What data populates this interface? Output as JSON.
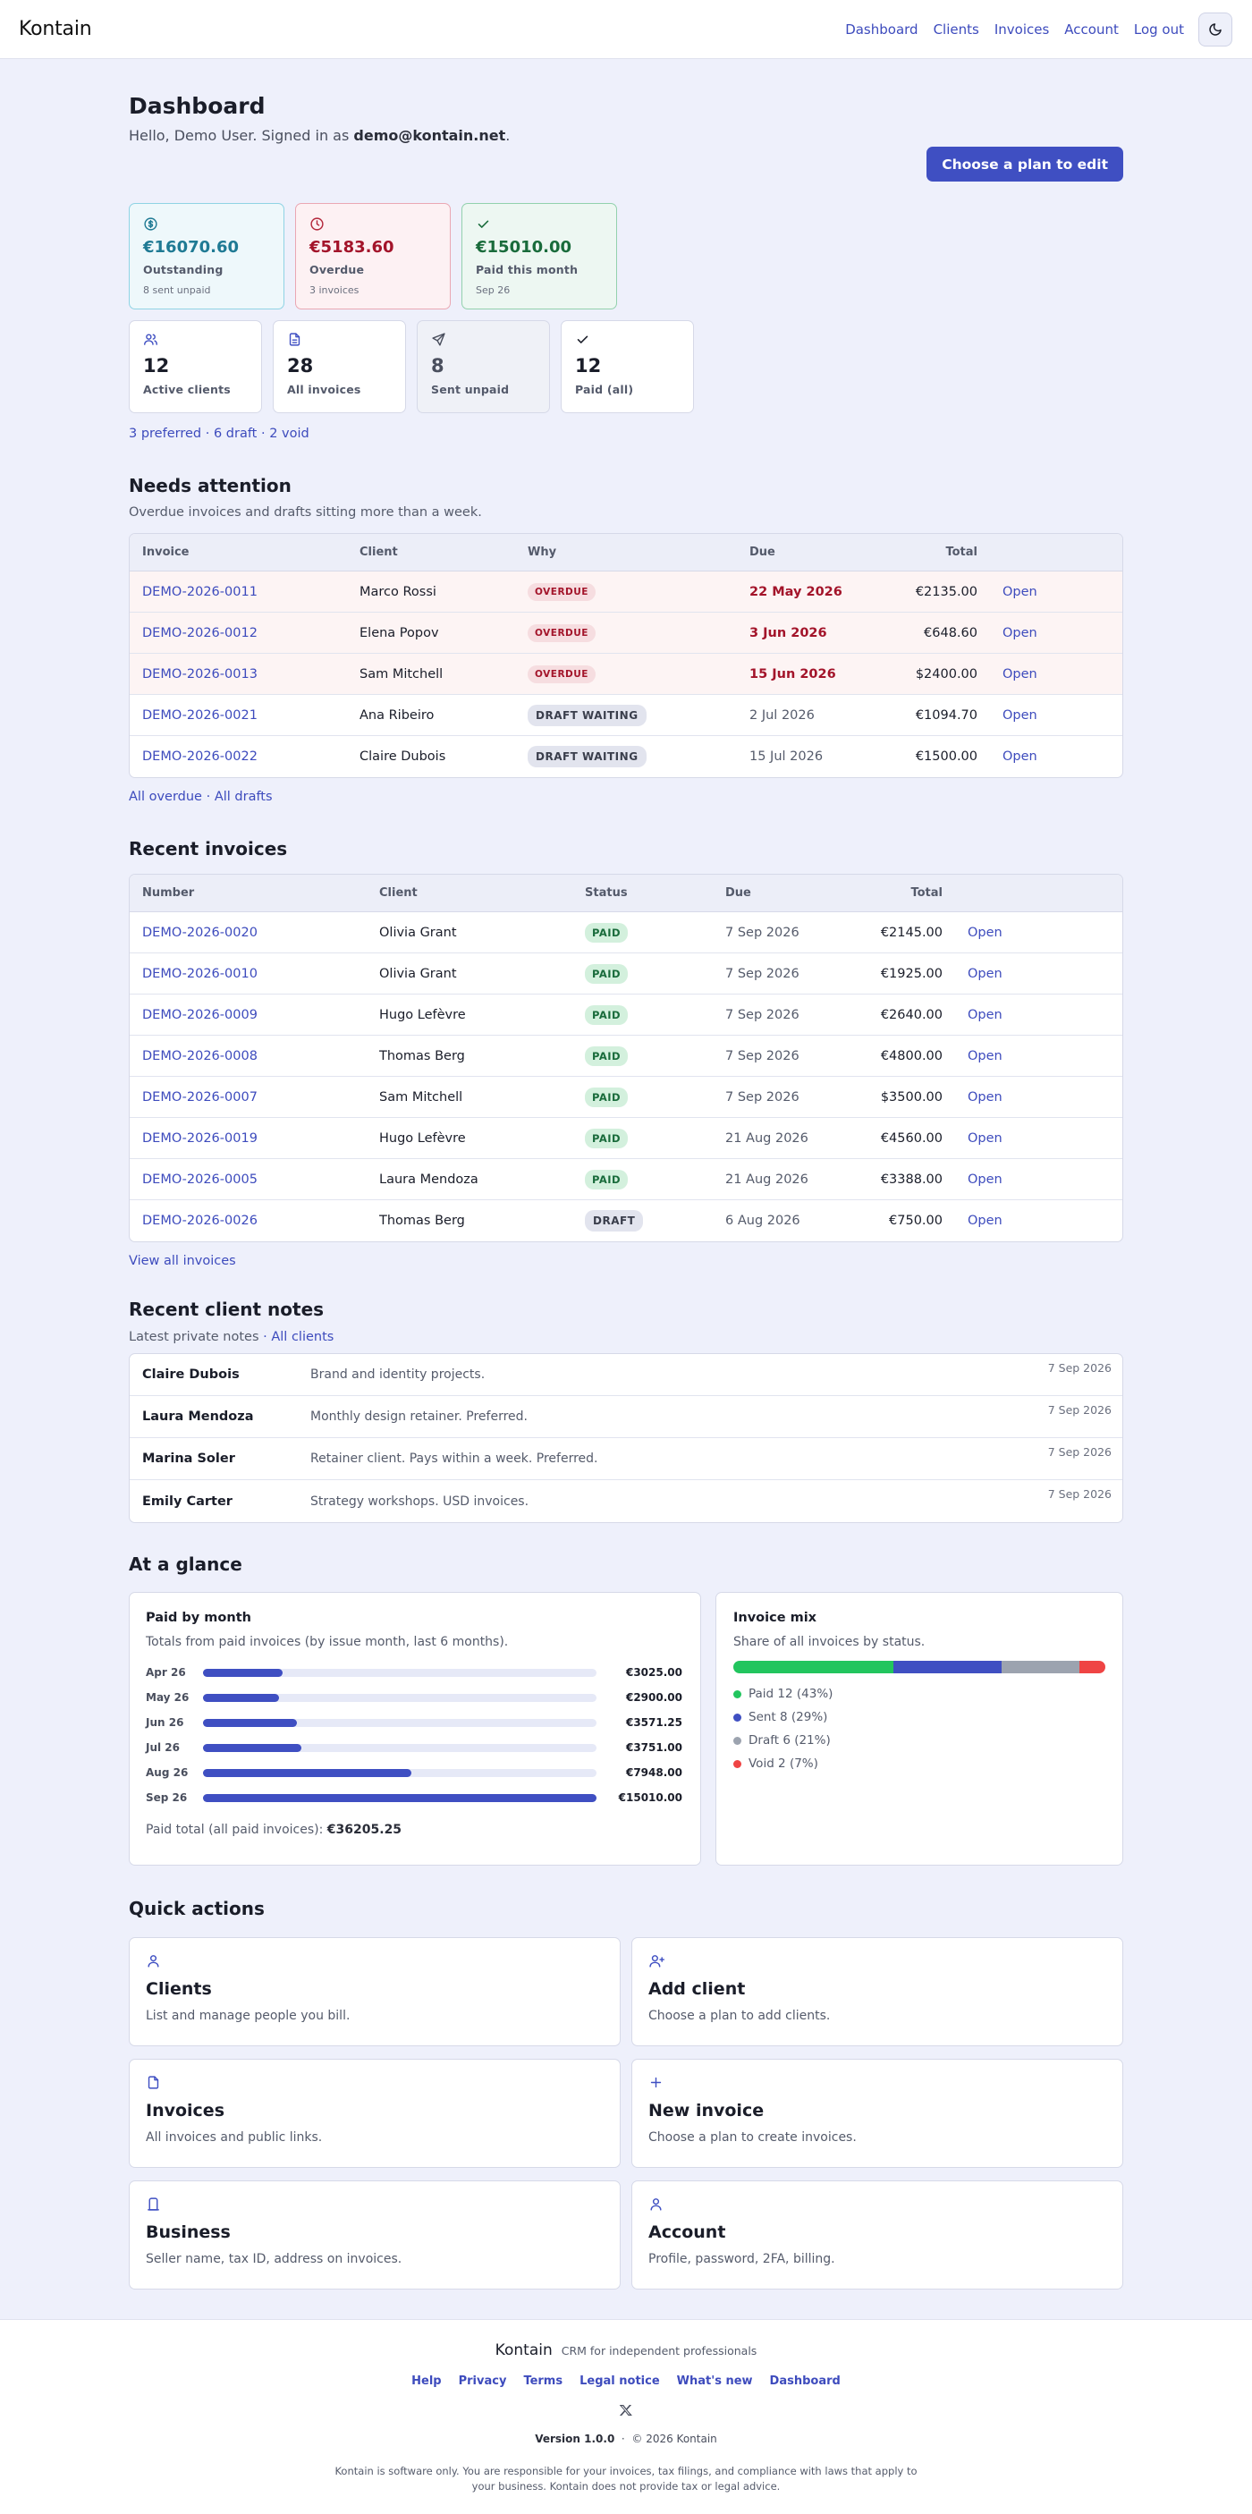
{
  "header": {
    "brand": "Kontain",
    "nav": [
      "Dashboard",
      "Clients",
      "Invoices",
      "Account",
      "Log out"
    ],
    "theme_icon": "moon-icon"
  },
  "dashboard": {
    "title": "Dashboard",
    "greeting_prefix": "Hello, Demo User. Signed in as",
    "email": "demo@kontain.net",
    "greeting_suffix": ".",
    "plan_button": "Choose a plan to edit"
  },
  "stats": {
    "outstanding": {
      "value": "€16070.60",
      "label": "Outstanding",
      "sub": "8 sent unpaid",
      "icon": "currency-circle-icon"
    },
    "overdue": {
      "value": "€5183.60",
      "label": "Overdue",
      "sub": "3 invoices",
      "icon": "clock-icon"
    },
    "paid_month": {
      "value": "€15010.00",
      "label": "Paid this month",
      "sub": "Sep 26",
      "icon": "check-icon"
    },
    "active_clients": {
      "value": "12",
      "label": "Active clients",
      "icon": "users-icon"
    },
    "all_invoices": {
      "value": "28",
      "label": "All invoices",
      "icon": "document-icon"
    },
    "sent_unpaid": {
      "value": "8",
      "label": "Sent unpaid",
      "icon": "send-icon"
    },
    "paid_all": {
      "value": "12",
      "label": "Paid (all)",
      "icon": "check-icon"
    }
  },
  "meta_links": {
    "preferred": "3 preferred",
    "sep1": " · ",
    "draft": "6 draft",
    "sep2": " · ",
    "void": "2 void"
  },
  "attention": {
    "title": "Needs attention",
    "subtitle": "Overdue invoices and drafts sitting more than a week.",
    "columns": [
      "Invoice",
      "Client",
      "Why",
      "Due",
      "Total",
      ""
    ],
    "rows": [
      {
        "invoice": "DEMO-2026-0011",
        "client": "Marco Rossi",
        "why": "OVERDUE",
        "due": "22 May 2026",
        "total": "€2135.00",
        "action": "Open"
      },
      {
        "invoice": "DEMO-2026-0012",
        "client": "Elena Popov",
        "why": "OVERDUE",
        "due": "3 Jun 2026",
        "total": "€648.60",
        "action": "Open"
      },
      {
        "invoice": "DEMO-2026-0013",
        "client": "Sam Mitchell",
        "why": "OVERDUE",
        "due": "15 Jun 2026",
        "total": "$2400.00",
        "action": "Open"
      },
      {
        "invoice": "DEMO-2026-0021",
        "client": "Ana Ribeiro",
        "why": "DRAFT WAITING",
        "due": "2 Jul 2026",
        "total": "€1094.70",
        "action": "Open"
      },
      {
        "invoice": "DEMO-2026-0022",
        "client": "Claire Dubois",
        "why": "DRAFT WAITING",
        "due": "15 Jul 2026",
        "total": "€1500.00",
        "action": "Open"
      }
    ],
    "link_overdue": "All overdue",
    "link_sep": " · ",
    "link_drafts": "All drafts"
  },
  "recent": {
    "title": "Recent invoices",
    "columns": [
      "Number",
      "Client",
      "Status",
      "Due",
      "Total",
      ""
    ],
    "rows": [
      {
        "number": "DEMO-2026-0020",
        "client": "Olivia Grant",
        "status": "PAID",
        "due": "7 Sep 2026",
        "total": "€2145.00",
        "action": "Open"
      },
      {
        "number": "DEMO-2026-0010",
        "client": "Olivia Grant",
        "status": "PAID",
        "due": "7 Sep 2026",
        "total": "€1925.00",
        "action": "Open"
      },
      {
        "number": "DEMO-2026-0009",
        "client": "Hugo Lefèvre",
        "status": "PAID",
        "due": "7 Sep 2026",
        "total": "€2640.00",
        "action": "Open"
      },
      {
        "number": "DEMO-2026-0008",
        "client": "Thomas Berg",
        "status": "PAID",
        "due": "7 Sep 2026",
        "total": "€4800.00",
        "action": "Open"
      },
      {
        "number": "DEMO-2026-0007",
        "client": "Sam Mitchell",
        "status": "PAID",
        "due": "7 Sep 2026",
        "total": "$3500.00",
        "action": "Open"
      },
      {
        "number": "DEMO-2026-0019",
        "client": "Hugo Lefèvre",
        "status": "PAID",
        "due": "21 Aug 2026",
        "total": "€4560.00",
        "action": "Open"
      },
      {
        "number": "DEMO-2026-0005",
        "client": "Laura Mendoza",
        "status": "PAID",
        "due": "21 Aug 2026",
        "total": "€3388.00",
        "action": "Open"
      },
      {
        "number": "DEMO-2026-0026",
        "client": "Thomas Berg",
        "status": "DRAFT",
        "due": "6 Aug 2026",
        "total": "€750.00",
        "action": "Open"
      }
    ],
    "view_all": "View all invoices"
  },
  "notes": {
    "title": "Recent client notes",
    "subtitle": "Latest private notes",
    "sep": " · ",
    "all_clients": "All clients",
    "rows": [
      {
        "name": "Claire Dubois",
        "text": "Brand and identity projects.",
        "date": "7 Sep 2026"
      },
      {
        "name": "Laura Mendoza",
        "text": "Monthly design retainer. Preferred.",
        "date": "7 Sep 2026"
      },
      {
        "name": "Marina Soler",
        "text": "Retainer client. Pays within a week. Preferred.",
        "date": "7 Sep 2026"
      },
      {
        "name": "Emily Carter",
        "text": "Strategy workshops. USD invoices.",
        "date": "7 Sep 2026"
      }
    ]
  },
  "glance": {
    "title": "At a glance",
    "paid_by_month": {
      "title": "Paid by month",
      "subtitle": "Totals from paid invoices (by issue month, last 6 months).",
      "total_label": "Paid total (all paid invoices):",
      "total_value": "€36205.25"
    },
    "mix": {
      "title": "Invoice mix",
      "subtitle": "Share of all invoices by status."
    }
  },
  "chart_data": [
    {
      "type": "bar",
      "title": "Paid by month",
      "categories": [
        "Apr 26",
        "May 26",
        "Jun 26",
        "Jul 26",
        "Aug 26",
        "Sep 26"
      ],
      "values": [
        3025.0,
        2900.0,
        3571.25,
        3751.0,
        7948.0,
        15010.0
      ],
      "value_labels": [
        "€3025.00",
        "€2900.00",
        "€3571.25",
        "€3751.00",
        "€7948.00",
        "€15010.00"
      ],
      "orientation": "horizontal",
      "color": "#3f4fc2"
    },
    {
      "type": "bar",
      "title": "Invoice mix",
      "stacked": true,
      "series": [
        {
          "name": "Paid",
          "count": 12,
          "percent": 43,
          "label": "Paid 12 (43%)",
          "color": "#22c55e"
        },
        {
          "name": "Sent",
          "count": 8,
          "percent": 29,
          "label": "Sent 8 (29%)",
          "color": "#3f4fc2"
        },
        {
          "name": "Draft",
          "count": 6,
          "percent": 21,
          "label": "Draft 6 (21%)",
          "color": "#9ca3af"
        },
        {
          "name": "Void",
          "count": 2,
          "percent": 7,
          "label": "Void 2 (7%)",
          "color": "#ef4444"
        }
      ]
    }
  ],
  "quick_actions": {
    "title": "Quick actions",
    "items": [
      {
        "title": "Clients",
        "desc": "List and manage people you bill.",
        "icon": "user-icon"
      },
      {
        "title": "Add client",
        "desc": "Choose a plan to add clients.",
        "icon": "user-plus-icon"
      },
      {
        "title": "Invoices",
        "desc": "All invoices and public links.",
        "icon": "document-icon"
      },
      {
        "title": "New invoice",
        "desc": "Choose a plan to create invoices.",
        "icon": "plus-icon"
      },
      {
        "title": "Business",
        "desc": "Seller name, tax ID, address on invoices.",
        "icon": "building-icon"
      },
      {
        "title": "Account",
        "desc": "Profile, password, 2FA, billing.",
        "icon": "user-icon"
      }
    ]
  },
  "footer": {
    "brand": "Kontain",
    "tagline": "CRM for independent professionals",
    "links": [
      "Help",
      "Privacy",
      "Terms",
      "Legal notice",
      "What's new",
      "Dashboard"
    ],
    "social_icon": "x-logo-icon",
    "version_label": "Version 1.0.0",
    "copyright": "© 2026 Kontain",
    "disclaimer": "Kontain is software only. You are responsible for your invoices, tax filings, and compliance with laws that apply to your business. Kontain does not provide tax or legal advice."
  },
  "colors": {
    "accent": "#3f4fc2",
    "link": "#3d4bbd",
    "background": "#eef0fb",
    "overdue_red": "#a3142a",
    "paid_green": "#196b3b"
  }
}
